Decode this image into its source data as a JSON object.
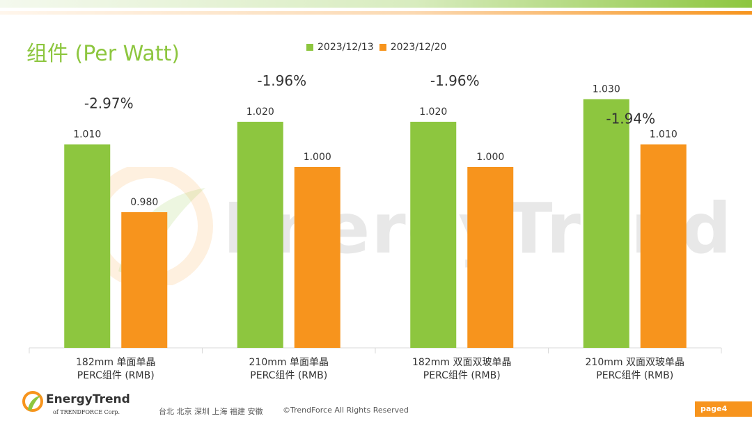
{
  "header": {
    "title": "组件 (Per Watt)"
  },
  "colors": {
    "series1": "#8dc63f",
    "series2": "#f7941d"
  },
  "chart_data": {
    "type": "bar",
    "title": "组件 (Per Watt)",
    "categories": [
      [
        "182mm 单面单晶",
        "PERC组件 (RMB)"
      ],
      [
        "210mm 单面单晶",
        "PERC组件 (RMB)"
      ],
      [
        "182mm 双面双玻单晶",
        "PERC组件 (RMB)"
      ],
      [
        "210mm 双面双玻单晶",
        "PERC组件 (RMB)"
      ]
    ],
    "series": [
      {
        "name": "2023/12/13",
        "values": [
          1.01,
          1.02,
          1.02,
          1.03
        ],
        "labels": [
          "1.010",
          "1.020",
          "1.020",
          "1.030"
        ]
      },
      {
        "name": "2023/12/20",
        "values": [
          0.98,
          1.0,
          1.0,
          1.01
        ],
        "labels": [
          "0.980",
          "1.000",
          "1.000",
          "1.010"
        ]
      }
    ],
    "annotations": [
      "-2.97%",
      "-1.96%",
      "-1.96%",
      "-1.94%"
    ],
    "ylim": [
      0.92,
      1.04
    ],
    "legend": "top",
    "grid": false
  },
  "watermark": "EnergyTrend",
  "footer": {
    "logo_name": "EnergyTrend",
    "logo_sub": "of TRENDFORCE Corp.",
    "cities": "台北  北京  深圳  上海  福建  安徽",
    "copyright": "©TrendForce All Rights Reserved",
    "page": "page4"
  }
}
